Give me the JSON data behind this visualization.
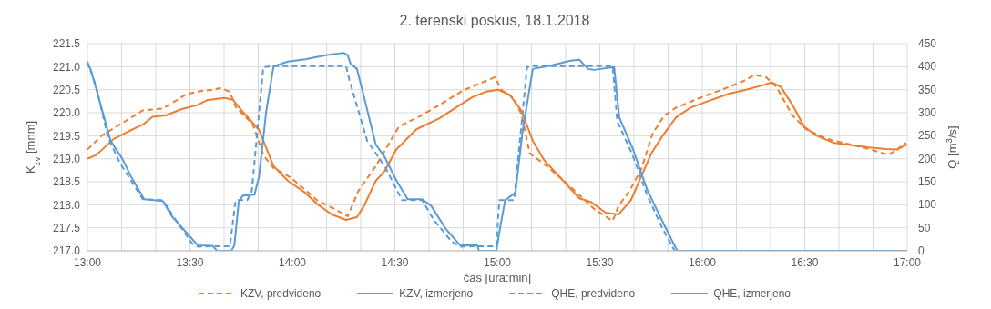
{
  "chart_data": {
    "type": "line",
    "title": "2. terenski poskus, 18.1.2018",
    "xlabel": "čas [ura:min]",
    "ylabel": "K$_{zv}$ [mnm]",
    "y2label": "Q [m$^{3}$/s]",
    "xlim": [
      13,
      17
    ],
    "xticks": [
      {
        "value": 13,
        "label": "13:00"
      },
      {
        "value": 13.1667,
        "label": null
      },
      {
        "value": 13.3333,
        "label": null
      },
      {
        "value": 13.5,
        "label": "13:30"
      },
      {
        "value": 13.6667,
        "label": null
      },
      {
        "value": 13.8333,
        "label": null
      },
      {
        "value": 14,
        "label": "14:00"
      },
      {
        "value": 14.1667,
        "label": null
      },
      {
        "value": 14.3333,
        "label": null
      },
      {
        "value": 14.5,
        "label": "14:30"
      },
      {
        "value": 14.6667,
        "label": null
      },
      {
        "value": 14.8333,
        "label": null
      },
      {
        "value": 15,
        "label": "15:00"
      },
      {
        "value": 15.1667,
        "label": null
      },
      {
        "value": 15.3333,
        "label": null
      },
      {
        "value": 15.5,
        "label": "15:30"
      },
      {
        "value": 15.6667,
        "label": null
      },
      {
        "value": 15.8333,
        "label": null
      },
      {
        "value": 16,
        "label": "16:00"
      },
      {
        "value": 16.1667,
        "label": null
      },
      {
        "value": 16.3333,
        "label": null
      },
      {
        "value": 16.5,
        "label": "16:30"
      },
      {
        "value": 16.6667,
        "label": null
      },
      {
        "value": 16.8333,
        "label": null
      },
      {
        "value": 17,
        "label": "17:00"
      }
    ],
    "ylim": [
      217,
      221.5
    ],
    "yticks": [
      {
        "value": 217,
        "label": "217.0"
      },
      {
        "value": 217.5,
        "label": "217.5"
      },
      {
        "value": 218,
        "label": "218.0"
      },
      {
        "value": 218.5,
        "label": "218.5"
      },
      {
        "value": 219,
        "label": "219.0"
      },
      {
        "value": 219.5,
        "label": "219.5"
      },
      {
        "value": 220,
        "label": "220.0"
      },
      {
        "value": 220.5,
        "label": "220.5"
      },
      {
        "value": 221,
        "label": "221.0"
      },
      {
        "value": 221.5,
        "label": "221.5"
      }
    ],
    "y2lim": [
      0,
      450
    ],
    "y2ticks": [
      0,
      50,
      100,
      150,
      200,
      250,
      300,
      350,
      400,
      450
    ],
    "grid": true,
    "legend": "bottom",
    "marker": "none",
    "series": [
      {
        "name": "KZV, predvideno",
        "color": "#ed7d31",
        "line_style": "dashed",
        "x": [
          13,
          13.072,
          13.157,
          13.27,
          13.368,
          13.482,
          13.553,
          13.61,
          13.652,
          13.695,
          13.723,
          13.808,
          13.858,
          13.908,
          13.993,
          14.12,
          14.205,
          14.27,
          14.322,
          14.407,
          14.52,
          14.62,
          14.718,
          14.832,
          14.918,
          14.988,
          15.023,
          15.073,
          15.117,
          15.158,
          15.23,
          15.343,
          15.472,
          15.563,
          15.592,
          15.645,
          15.702,
          15.758,
          15.815,
          15.872,
          16.015,
          16.085,
          16.198,
          16.255,
          16.312,
          16.362,
          16.44,
          16.51,
          16.61,
          16.723,
          16.823,
          16.908,
          16.95,
          16.993
        ],
        "values": [
          219.2,
          219.51,
          219.74,
          220.05,
          220.09,
          220.4,
          220.47,
          220.5,
          220.54,
          220.45,
          220.13,
          219.74,
          219.08,
          218.8,
          218.59,
          218.1,
          217.91,
          217.75,
          218.3,
          218.84,
          219.7,
          219.92,
          220.17,
          220.48,
          220.64,
          220.77,
          220.48,
          220.34,
          219.98,
          219.12,
          218.88,
          218.45,
          217.91,
          217.65,
          217.98,
          218.3,
          218.77,
          219.55,
          219.94,
          220.11,
          220.37,
          220.48,
          220.68,
          220.82,
          220.77,
          220.56,
          219.94,
          219.63,
          219.43,
          219.31,
          219.2,
          219.08,
          219.2,
          219.35
        ]
      },
      {
        "name": "KZV, izmerjeno",
        "color": "#ed7d31",
        "line_style": "solid",
        "x": [
          13,
          13.043,
          13.128,
          13.198,
          13.27,
          13.318,
          13.383,
          13.453,
          13.538,
          13.582,
          13.667,
          13.71,
          13.752,
          13.837,
          13.908,
          13.978,
          14.063,
          14.12,
          14.192,
          14.262,
          14.315,
          14.35,
          14.407,
          14.45,
          14.507,
          14.605,
          14.718,
          14.818,
          14.875,
          14.947,
          15.003,
          15.06,
          15.117,
          15.173,
          15.23,
          15.328,
          15.4,
          15.457,
          15.528,
          15.592,
          15.652,
          15.702,
          15.752,
          15.802,
          15.872,
          15.943,
          16.015,
          16.128,
          16.213,
          16.298,
          16.34,
          16.383,
          16.44,
          16.497,
          16.553,
          16.638,
          16.723,
          16.808,
          16.893,
          16.95,
          17
        ],
        "values": [
          219.0,
          219.08,
          219.43,
          219.59,
          219.74,
          219.91,
          219.94,
          220.07,
          220.17,
          220.27,
          220.32,
          220.28,
          220.05,
          219.63,
          218.84,
          218.52,
          218.26,
          218.02,
          217.79,
          217.67,
          217.73,
          217.98,
          218.52,
          218.73,
          219.2,
          219.64,
          219.88,
          220.17,
          220.33,
          220.46,
          220.5,
          220.39,
          220.05,
          219.39,
          218.96,
          218.49,
          218.14,
          218.06,
          217.83,
          217.79,
          218.1,
          218.61,
          219.12,
          219.47,
          219.9,
          220.11,
          220.23,
          220.41,
          220.5,
          220.6,
          220.66,
          220.56,
          220.17,
          219.7,
          219.51,
          219.35,
          219.3,
          219.25,
          219.21,
          219.2,
          219.31
        ]
      },
      {
        "name": "QHE, predvideno",
        "color": "#5b9bd5",
        "line_style": "dashed",
        "axis": "y2",
        "x": [
          13,
          13.043,
          13.1,
          13.157,
          13.27,
          13.368,
          13.425,
          13.51,
          13.538,
          13.61,
          13.695,
          13.723,
          13.78,
          13.802,
          13.858,
          13.893,
          14.262,
          14.28,
          14.365,
          14.45,
          14.535,
          14.633,
          14.69,
          14.777,
          14.818,
          14.903,
          14.995,
          15.01,
          15.082,
          15.145,
          15.173,
          15.563,
          15.585,
          15.66,
          15.73,
          15.802,
          15.865,
          17
        ],
        "values": [
          411,
          356,
          247,
          192,
          112,
          110,
          71,
          16,
          9,
          10,
          10,
          110,
          110,
          130,
          399,
          401,
          401,
          368,
          239,
          184,
          110,
          110,
          67,
          20,
          9,
          10,
          10,
          110,
          110,
          399,
          401,
          401,
          282,
          208,
          122,
          52,
          0,
          0
        ]
      },
      {
        "name": "QHE, izmerjeno",
        "color": "#5b9bd5",
        "line_style": "solid",
        "axis": "y2",
        "x": [
          13,
          13.015,
          13.043,
          13.113,
          13.17,
          13.213,
          13.277,
          13.368,
          13.412,
          13.482,
          13.538,
          13.61,
          13.632,
          13.702,
          13.717,
          13.738,
          13.758,
          13.815,
          13.837,
          13.872,
          13.908,
          13.978,
          14.063,
          14.163,
          14.248,
          14.27,
          14.283,
          14.315,
          14.35,
          14.407,
          14.45,
          14.507,
          14.563,
          14.633,
          14.677,
          14.748,
          14.818,
          14.903,
          14.91,
          14.995,
          15.017,
          15.038,
          15.088,
          15.123,
          15.173,
          15.258,
          15.357,
          15.4,
          15.443,
          15.472,
          15.57,
          15.595,
          15.66,
          15.73,
          15.802,
          15.872,
          15.88,
          17
        ],
        "values": [
          405,
          395,
          352,
          239,
          200,
          161,
          112,
          108,
          75,
          40,
          12,
          11,
          0,
          0,
          12,
          106,
          120,
          122,
          161,
          302,
          401,
          411,
          416,
          425,
          430,
          425,
          407,
          395,
          333,
          231,
          204,
          153,
          112,
          112,
          98,
          48,
          12,
          12,
          0,
          0,
          59,
          110,
          126,
          259,
          395,
          402,
          413,
          415,
          395,
          393,
          399,
          290,
          223,
          134,
          67,
          5,
          0,
          0
        ]
      }
    ]
  }
}
